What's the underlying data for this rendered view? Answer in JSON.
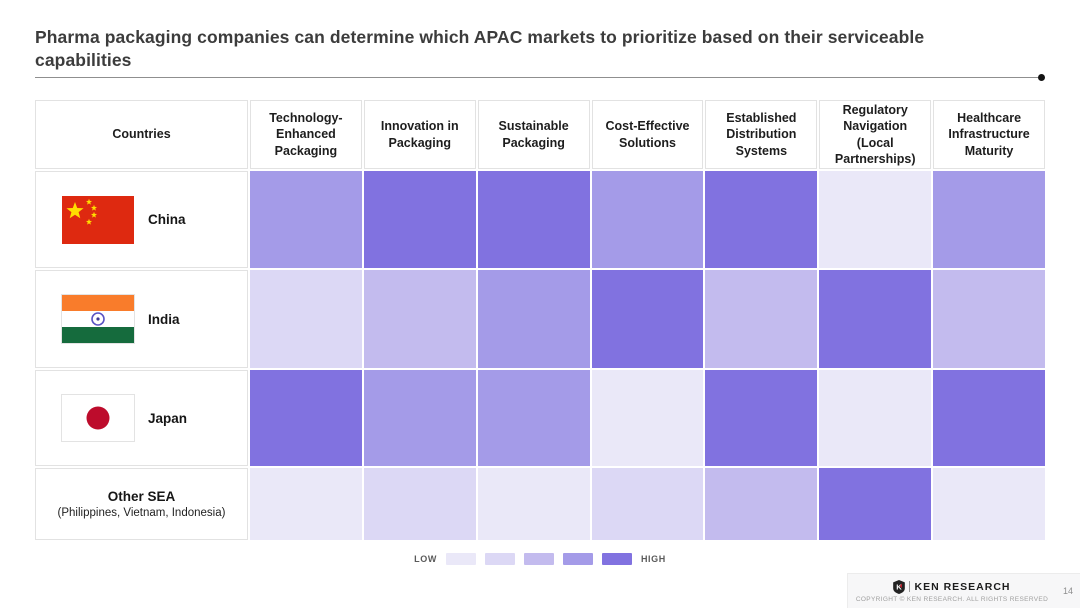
{
  "title": "Pharma packaging companies can determine which APAC markets to prioritize based on their serviceable capabilities",
  "table": {
    "header": [
      "Countries",
      "Technology-Enhanced Packaging",
      "Innovation in Packaging",
      "Sustainable Packaging",
      "Cost-Effective Solutions",
      "Established Distribution Systems",
      "Regulatory Navigation (Local Partnerships)",
      "Healthcare Infrastructure Maturity"
    ],
    "rows": [
      {
        "label": "China",
        "sublabel": "",
        "flag": "china-flag"
      },
      {
        "label": "India",
        "sublabel": "",
        "flag": "india-flag"
      },
      {
        "label": "Japan",
        "sublabel": "",
        "flag": "japan-flag"
      },
      {
        "label": "Other SEA",
        "sublabel": "(Philippines, Vietnam, Indonesia)",
        "flag": null
      }
    ]
  },
  "chart_data": {
    "type": "heatmap",
    "title": "Pharma packaging companies can determine which APAC markets to prioritize based on their serviceable capabilities",
    "x_categories": [
      "Technology-Enhanced Packaging",
      "Innovation in Packaging",
      "Sustainable Packaging",
      "Cost-Effective Solutions",
      "Established Distribution Systems",
      "Regulatory Navigation (Local Partnerships)",
      "Healthcare Infrastructure Maturity"
    ],
    "y_categories": [
      "China",
      "India",
      "Japan",
      "Other SEA (Philippines, Vietnam, Indonesia)"
    ],
    "values": [
      [
        4,
        5,
        5,
        4,
        5,
        1,
        4
      ],
      [
        2,
        3,
        4,
        5,
        3,
        5,
        3
      ],
      [
        5,
        4,
        4,
        1,
        5,
        1,
        5
      ],
      [
        1,
        2,
        1,
        2,
        3,
        5,
        1
      ]
    ],
    "scale": {
      "levels": 5,
      "min_label": "LOW",
      "max_label": "HIGH"
    },
    "legend_position": "bottom"
  },
  "legend": {
    "low": "LOW",
    "high": "HIGH",
    "colors": [
      "#EAE8F8",
      "#DCD8F5",
      "#C3BBEE",
      "#A49BE8",
      "#8172E0"
    ]
  },
  "flag_colors": {
    "china_red": "#DE2910",
    "china_yellow": "#FFDE00",
    "india_saffron": "#F97C2B",
    "india_green": "#156B3D",
    "india_chakra": "#5A54C4",
    "japan_red": "#BD0C2C"
  },
  "footer": {
    "brand": "KEN RESEARCH",
    "logo_icon": "ken-research-shield-icon",
    "copyright": "COPYRIGHT © KEN RESEARCH. ALL RIGHTS RESERVED",
    "page": "14"
  }
}
